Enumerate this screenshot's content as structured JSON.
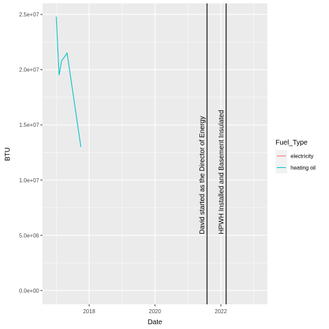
{
  "chart_data": {
    "type": "line",
    "title": "",
    "xlabel": "Date",
    "ylabel": "BTU",
    "xlim": [
      "2016-08-01",
      "2023-06-01"
    ],
    "ylim": [
      -1250000,
      26000000
    ],
    "x_ticks": [
      "2018",
      "2020",
      "2022"
    ],
    "y_ticks": [
      "0.0e+00",
      "5.0e+06",
      "1.0e+07",
      "1.5e+07",
      "2.0e+07",
      "2.5e+07"
    ],
    "grid": true,
    "legend": {
      "title": "Fuel_Type",
      "position": "right",
      "entries": [
        {
          "name": "electricity",
          "color": "#F8766D"
        },
        {
          "name": "heating oil",
          "color": "#00BFC4"
        }
      ]
    },
    "series": [
      {
        "name": "electricity",
        "color": "#F8766D",
        "points": []
      },
      {
        "name": "heating oil",
        "color": "#00BFC4",
        "points": [
          {
            "x": "2017-01-01",
            "y": 24800000
          },
          {
            "x": "2017-02-01",
            "y": 19500000
          },
          {
            "x": "2017-03-01",
            "y": 20800000
          },
          {
            "x": "2017-05-01",
            "y": 21500000
          },
          {
            "x": "2017-10-01",
            "y": 13000000
          }
        ]
      }
    ],
    "annotations": [
      {
        "date": "2021-08-01",
        "label": "David started as the Director of Energy"
      },
      {
        "date": "2022-03-01",
        "label": "HPWH Installed and Basement Insulated"
      }
    ]
  }
}
